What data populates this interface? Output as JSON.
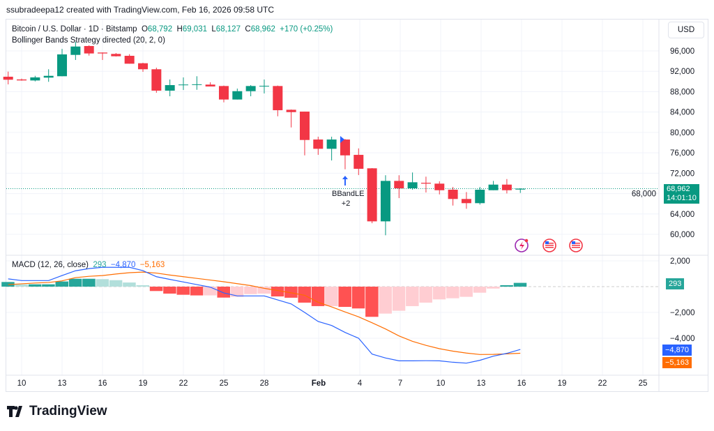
{
  "attribution": "ssubradeepa12 created with TradingView.com, Feb 16, 2026 09:58 UTC",
  "symbol": {
    "name": "Bitcoin / U.S. Dollar · 1D · Bitstamp",
    "o_label": "O",
    "o": "68,792",
    "h_label": "H",
    "h": "69,031",
    "l_label": "L",
    "l": "68,127",
    "c_label": "C",
    "c": "68,962",
    "change": "+170 (+0.25%)"
  },
  "strategy": "Bollinger Bands Strategy directed (20, 2, 0)",
  "currency_button": "USD",
  "price_tag": {
    "price": "68,962",
    "countdown": "14:01:10"
  },
  "signal": {
    "label": "BBandLE",
    "qty": "+2"
  },
  "macd_legend": {
    "name": "MACD (12, 26, close)",
    "hist": "293",
    "macd": "−4,870",
    "signal": "−5,163"
  },
  "macd_tags": {
    "hist": "293",
    "macd": "−4,870",
    "signal": "−5,163"
  },
  "logo_text": "TradingView",
  "colors": {
    "up": "#089981",
    "down": "#f23645",
    "macd": "#2962ff",
    "signal": "#ff6d00",
    "hist_up_strong": "#26a69a",
    "hist_up_weak": "#b2dfdb",
    "hist_down_strong": "#ff5252",
    "hist_down_weak": "#ffcdd2",
    "marker": "#2962ff"
  },
  "icons": [
    "lightning-event-icon",
    "us-flag-event-icon",
    "us-flag-event-icon"
  ],
  "chart_data": [
    {
      "type": "candlestick",
      "price_axis": {
        "ylim": [
          58000,
          98000
        ],
        "ticks": [
          "96,000",
          "92,000",
          "88,000",
          "84,000",
          "80,000",
          "76,000",
          "72,000",
          "68,000",
          "64,000",
          "60,000"
        ]
      },
      "x_ticks": [
        "10",
        "13",
        "16",
        "19",
        "22",
        "25",
        "28",
        "Feb",
        "4",
        "7",
        "10",
        "13",
        "16",
        "19",
        "22",
        "25"
      ],
      "dates": [
        "Jan 9",
        "Jan 10",
        "Jan 11",
        "Jan 12",
        "Jan 13",
        "Jan 14",
        "Jan 15",
        "Jan 16",
        "Jan 17",
        "Jan 18",
        "Jan 19",
        "Jan 20",
        "Jan 21",
        "Jan 22",
        "Jan 23",
        "Jan 24",
        "Jan 25",
        "Jan 26",
        "Jan 27",
        "Jan 28",
        "Jan 29",
        "Jan 30",
        "Jan 31",
        "Feb 1",
        "Feb 2",
        "Feb 3",
        "Feb 4",
        "Feb 5",
        "Feb 6",
        "Feb 7",
        "Feb 8",
        "Feb 9",
        "Feb 10",
        "Feb 11",
        "Feb 12",
        "Feb 13",
        "Feb 14",
        "Feb 15",
        "Feb 16"
      ],
      "ohlc": [
        [
          90935,
          91934,
          89430,
          90346
        ],
        [
          90400,
          90565,
          90150,
          90210
        ],
        [
          90200,
          91110,
          90020,
          90800
        ],
        [
          90760,
          92400,
          89935,
          91110
        ],
        [
          91030,
          96400,
          91030,
          95315
        ],
        [
          95220,
          97780,
          94220,
          96860
        ],
        [
          96960,
          97100,
          95080,
          95500
        ],
        [
          95680,
          95700,
          94220,
          95500
        ],
        [
          95410,
          95590,
          94900,
          94950
        ],
        [
          95040,
          95360,
          93490,
          93490
        ],
        [
          93580,
          93670,
          91890,
          92400
        ],
        [
          92400,
          92710,
          87790,
          88200
        ],
        [
          88200,
          90390,
          87100,
          89290
        ],
        [
          89380,
          90800,
          88330,
          89400
        ],
        [
          89400,
          91030,
          88370,
          89450
        ],
        [
          89390,
          89840,
          89020,
          89020
        ],
        [
          89110,
          89200,
          85910,
          86460
        ],
        [
          86460,
          88610,
          86460,
          88100
        ],
        [
          88100,
          89290,
          87100,
          89110
        ],
        [
          89020,
          90390,
          87650,
          89150
        ],
        [
          89110,
          89200,
          83170,
          84360
        ],
        [
          84450,
          84500,
          80980,
          83990
        ],
        [
          84090,
          84100,
          75500,
          78520
        ],
        [
          78610,
          79160,
          75600,
          76790
        ],
        [
          76790,
          79160,
          74500,
          78610
        ],
        [
          78610,
          78700,
          72770,
          75500
        ],
        [
          75600,
          76870,
          71630,
          72860
        ],
        [
          72960,
          73000,
          62180,
          62550
        ],
        [
          62550,
          71600,
          59820,
          70490
        ],
        [
          70490,
          71600,
          67110,
          69030
        ],
        [
          69030,
          72140,
          68760,
          70220
        ],
        [
          70120,
          71320,
          68210,
          69950
        ],
        [
          69950,
          70400,
          67840,
          68660
        ],
        [
          68760,
          69300,
          65650,
          66940
        ],
        [
          66940,
          68300,
          65020,
          66120
        ],
        [
          66120,
          69300,
          65840,
          68760
        ],
        [
          68660,
          70490,
          68660,
          69760
        ],
        [
          69760,
          70850,
          68030,
          68660
        ],
        [
          68792,
          69031,
          68127,
          68962
        ]
      ],
      "last_price": 68962,
      "markers": [
        {
          "date": "Feb 3",
          "type": "entry-triangle"
        },
        {
          "date": "Feb 3",
          "type": "long-arrow",
          "label": "BBandLE",
          "qty": "+2"
        }
      ]
    },
    {
      "type": "macd",
      "ylim": [
        -6500,
        2200
      ],
      "ticks": [
        "2,000",
        "−2,000",
        "−4,000"
      ],
      "macd": [
        600,
        470,
        470,
        470,
        860,
        1230,
        1400,
        1500,
        1500,
        1500,
        1240,
        770,
        560,
        360,
        160,
        -40,
        -490,
        -720,
        -720,
        -720,
        -1030,
        -1340,
        -2000,
        -2700,
        -3010,
        -3550,
        -4000,
        -5230,
        -5530,
        -5750,
        -5750,
        -5740,
        -5750,
        -5860,
        -5930,
        -5710,
        -5390,
        -5170,
        -4870
      ],
      "signal": [
        160,
        220,
        280,
        320,
        450,
        700,
        800,
        860,
        980,
        1080,
        1130,
        1050,
        900,
        770,
        640,
        510,
        380,
        230,
        80,
        -130,
        -300,
        -480,
        -670,
        -1210,
        -1570,
        -1960,
        -2340,
        -2800,
        -3280,
        -3820,
        -4240,
        -4550,
        -4810,
        -5000,
        -5150,
        -5260,
        -5250,
        -5210,
        -5163
      ],
      "histogram": [
        360,
        180,
        180,
        180,
        400,
        610,
        610,
        580,
        500,
        320,
        110,
        -340,
        -540,
        -630,
        -680,
        -680,
        -850,
        -790,
        -580,
        -540,
        -760,
        -860,
        -1240,
        -1510,
        -1510,
        -1570,
        -1690,
        -2340,
        -2090,
        -1870,
        -1510,
        -1240,
        -990,
        -900,
        -790,
        -470,
        -150,
        110,
        293
      ]
    }
  ]
}
